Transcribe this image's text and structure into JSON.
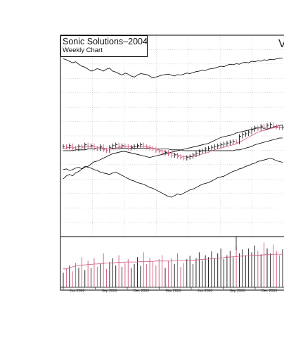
{
  "chart_data": {
    "type": "bar",
    "title": "Sonic Solutions–2004",
    "subtitle": "Weekly Chart",
    "corner_text": "V",
    "grid": true,
    "colors": {
      "up_bar": "#111111",
      "down_bar": "#d0587a",
      "moving_avg_short": "#d0587a",
      "lines": "#000000",
      "grid": "#b8b8b8"
    },
    "x_tick_labels": [
      "Jun 2002",
      "Sep 2002",
      "Dec 2002",
      "Mar 2003",
      "Jun 2003",
      "Sep 2003",
      "Dec 2003"
    ],
    "price": {
      "y_range": [
        0,
        100
      ],
      "close_series": [
        60,
        59,
        61,
        58,
        57,
        60,
        59,
        62,
        60,
        61,
        58,
        57,
        60,
        56,
        55,
        59,
        61,
        62,
        60,
        61,
        60,
        58,
        59,
        60,
        61,
        62,
        60,
        59,
        58,
        57,
        55,
        54,
        52,
        53,
        51,
        49,
        50,
        48,
        47,
        46,
        47,
        48,
        50,
        52,
        54,
        55,
        57,
        58,
        59,
        60,
        61,
        62,
        63,
        64,
        65,
        66,
        65,
        72,
        74,
        75,
        77,
        80,
        82,
        81,
        84,
        83,
        85,
        86,
        84,
        83,
        82,
        83
      ],
      "moving_avg_short": [
        58,
        58,
        59,
        59,
        59,
        60,
        60,
        60,
        60,
        60,
        60,
        59,
        59,
        58,
        57,
        57,
        58,
        58,
        59,
        59,
        60,
        60,
        60,
        60,
        60,
        60,
        60,
        60,
        59,
        58,
        57,
        56,
        55,
        54,
        53,
        52,
        51,
        50,
        49,
        48,
        48,
        48,
        48,
        49,
        50,
        51,
        52,
        53,
        55,
        56,
        57,
        58,
        59,
        60,
        61,
        62,
        63,
        65,
        67,
        69,
        71,
        73,
        75,
        77,
        78,
        79,
        80,
        81,
        82,
        82,
        82,
        82
      ],
      "moving_avg_long": [
        55,
        55,
        55,
        55,
        56,
        56,
        56,
        56,
        57,
        57,
        57,
        57,
        57,
        57,
        57,
        57,
        57,
        57,
        57,
        58,
        58,
        58,
        58,
        58,
        58,
        58,
        58,
        58,
        58,
        58,
        57,
        57,
        57,
        57,
        57,
        56,
        56,
        56,
        56,
        55,
        55,
        55,
        55,
        55,
        55,
        55,
        55,
        55,
        55,
        55,
        55,
        55,
        55,
        55,
        55,
        55,
        56,
        56,
        57,
        58,
        59,
        60,
        62,
        63,
        64,
        65,
        66,
        67,
        68,
        69,
        70,
        70
      ]
    },
    "relative_strength": {
      "y_range": [
        0,
        100
      ],
      "values": [
        20,
        24,
        26,
        24,
        28,
        30,
        33,
        36,
        37,
        40,
        43,
        44,
        46,
        48,
        50,
        52,
        54,
        55,
        56,
        57,
        57,
        56,
        55,
        54,
        53,
        52,
        51,
        50,
        49,
        50,
        51,
        52,
        53,
        54,
        55,
        56,
        57,
        58,
        59,
        60,
        61,
        62,
        63,
        64,
        65,
        66,
        67,
        68,
        70,
        72,
        74,
        76,
        77,
        78,
        79,
        80,
        82,
        83,
        84,
        85,
        86,
        87,
        88,
        89,
        90,
        88,
        87,
        89,
        90,
        91,
        92,
        93
      ]
    },
    "upper_line": {
      "y_range": [
        0,
        100
      ],
      "values": [
        95,
        93,
        90,
        87,
        89,
        84,
        80,
        78,
        74,
        70,
        72,
        75,
        73,
        70,
        74,
        76,
        70,
        68,
        65,
        62,
        66,
        64,
        60,
        58,
        62,
        65,
        64,
        63,
        60,
        56,
        58,
        60,
        62,
        63,
        64,
        62,
        60,
        63,
        62,
        64,
        66,
        65,
        67,
        69,
        70,
        72,
        71,
        74,
        75,
        76,
        78,
        80,
        79,
        82,
        84,
        83,
        85,
        84,
        87,
        88,
        87,
        90,
        89,
        91,
        90,
        93,
        92,
        94,
        93,
        95,
        96,
        97
      ]
    },
    "lower_line": {
      "y_range": [
        0,
        100
      ],
      "values": [
        47,
        48,
        46,
        47,
        49,
        50,
        48,
        51,
        50,
        49,
        47,
        46,
        44,
        43,
        42,
        41,
        43,
        44,
        42,
        40,
        38,
        36,
        34,
        33,
        31,
        30,
        29,
        27,
        25,
        24,
        22,
        20,
        18,
        16,
        14,
        13,
        15,
        17,
        16,
        18,
        20,
        22,
        23,
        25,
        27,
        29,
        30,
        31,
        33,
        35,
        37,
        38,
        39,
        41,
        43,
        45,
        46,
        48,
        49,
        51,
        52,
        54,
        55,
        57,
        58,
        59,
        60,
        61,
        60,
        58,
        57,
        56
      ]
    },
    "volume": {
      "y_range": [
        0,
        100
      ],
      "values": [
        30,
        38,
        45,
        33,
        50,
        40,
        62,
        35,
        55,
        40,
        60,
        42,
        48,
        70,
        38,
        52,
        60,
        45,
        66,
        42,
        50,
        58,
        40,
        48,
        62,
        44,
        72,
        48,
        60,
        52,
        45,
        58,
        66,
        40,
        54,
        60,
        48,
        70,
        42,
        50,
        58,
        65,
        48,
        60,
        72,
        55,
        66,
        62,
        74,
        60,
        70,
        80,
        58,
        66,
        75,
        62,
        84,
        70,
        78,
        66,
        80,
        72,
        86,
        74,
        68,
        92,
        80,
        70,
        88,
        75,
        66,
        78
      ],
      "moving_avg": [
        38,
        38,
        40,
        42,
        44,
        45,
        46,
        46,
        47,
        47,
        48,
        48,
        49,
        49,
        50,
        50,
        50,
        51,
        51,
        51,
        52,
        52,
        52,
        52,
        52,
        53,
        53,
        53,
        53,
        53,
        54,
        54,
        54,
        54,
        54,
        54,
        55,
        55,
        55,
        55,
        56,
        56,
        56,
        56,
        57,
        57,
        58,
        58,
        59,
        59,
        60,
        60,
        61,
        62,
        62,
        63,
        63,
        64,
        64,
        65,
        65,
        65,
        66,
        66,
        66,
        67,
        67,
        67,
        68,
        68,
        68,
        68
      ]
    }
  }
}
